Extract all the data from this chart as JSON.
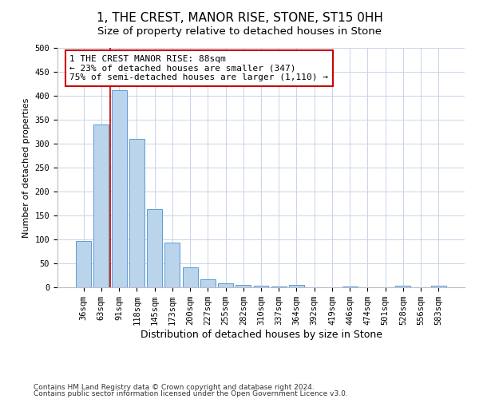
{
  "title": "1, THE CREST, MANOR RISE, STONE, ST15 0HH",
  "subtitle": "Size of property relative to detached houses in Stone",
  "xlabel": "Distribution of detached houses by size in Stone",
  "ylabel": "Number of detached properties",
  "footnote1": "Contains HM Land Registry data © Crown copyright and database right 2024.",
  "footnote2": "Contains public sector information licensed under the Open Government Licence v3.0.",
  "bar_labels": [
    "36sqm",
    "63sqm",
    "91sqm",
    "118sqm",
    "145sqm",
    "173sqm",
    "200sqm",
    "227sqm",
    "255sqm",
    "282sqm",
    "310sqm",
    "337sqm",
    "364sqm",
    "392sqm",
    "419sqm",
    "446sqm",
    "474sqm",
    "501sqm",
    "528sqm",
    "556sqm",
    "583sqm"
  ],
  "bar_values": [
    97,
    340,
    412,
    310,
    163,
    94,
    41,
    16,
    8,
    5,
    3,
    1,
    5,
    0,
    0,
    1,
    0,
    0,
    4,
    0,
    4
  ],
  "bar_color": "#bad4ec",
  "bar_edge_color": "#5b9bd5",
  "ylim": [
    0,
    500
  ],
  "yticks": [
    0,
    50,
    100,
    150,
    200,
    250,
    300,
    350,
    400,
    450,
    500
  ],
  "vline_index": 1.5,
  "vline_color": "#cc0000",
  "annotation_line1": "1 THE CREST MANOR RISE: 88sqm",
  "annotation_line2": "← 23% of detached houses are smaller (347)",
  "annotation_line3": "75% of semi-detached houses are larger (1,110) →",
  "annotation_box_color": "#cc0000",
  "title_fontsize": 11,
  "subtitle_fontsize": 9.5,
  "annotation_fontsize": 8,
  "axis_tick_fontsize": 7.5,
  "xlabel_fontsize": 9,
  "ylabel_fontsize": 8,
  "footnote_fontsize": 6.5,
  "bg_color": "#ffffff",
  "grid_color": "#c8d4e8"
}
